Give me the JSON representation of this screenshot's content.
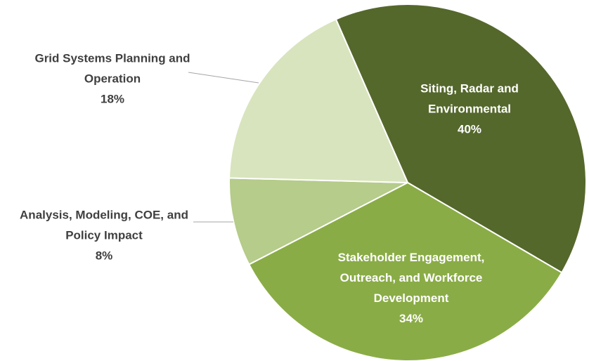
{
  "chart_data": {
    "type": "pie",
    "categories": [
      "Siting, Radar and Environmental",
      "Stakeholder Engagement, Outreach, and Workforce Development",
      "Analysis, Modeling, COE, and Policy Impact",
      "Grid Systems Planning and Operation"
    ],
    "values": [
      40,
      34,
      8,
      18
    ],
    "value_labels": [
      "40%",
      "34%",
      "8%",
      "18%"
    ],
    "colors": [
      "#55682c",
      "#8aac46",
      "#b5cc8a",
      "#d8e4bd"
    ]
  }
}
